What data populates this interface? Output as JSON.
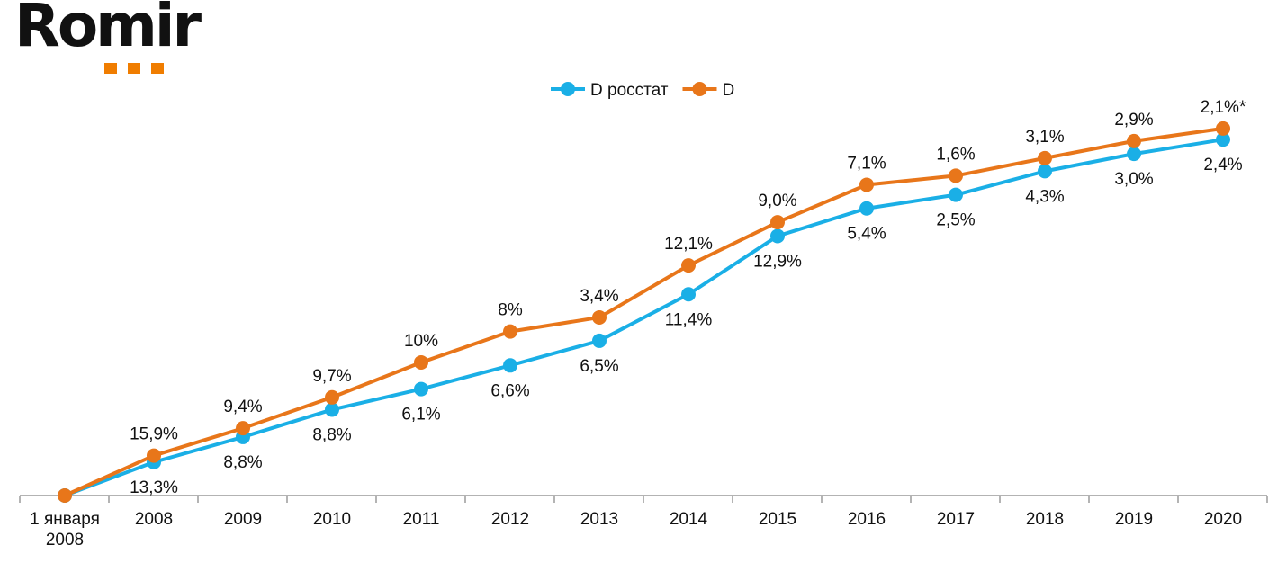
{
  "logo": {
    "text": "Romir",
    "dot_color": "#F07D00"
  },
  "chart_data": {
    "type": "line",
    "title": "",
    "xlabel": "",
    "ylabel": "",
    "ylim": [
      1.0,
      2.5
    ],
    "grid": false,
    "legend_position": "top-center",
    "categories": [
      "1 января 2008",
      "2008",
      "2009",
      "2010",
      "2011",
      "2012",
      "2013",
      "2014",
      "2015",
      "2016",
      "2017",
      "2018",
      "2019",
      "2020"
    ],
    "series": [
      {
        "name": "D росстат",
        "color": "#1AAFE6",
        "label_position": "below",
        "values": [
          1.0,
          1.133,
          1.233,
          1.342,
          1.424,
          1.518,
          1.616,
          1.801,
          2.033,
          2.143,
          2.197,
          2.291,
          2.36,
          2.417
        ],
        "labels": [
          "",
          "13,3%",
          "8,8%",
          "8,8%",
          "6,1%",
          "6,6%",
          "6,5%",
          "11,4%",
          "12,9%",
          "5,4%",
          "2,5%",
          "4,3%",
          "3,0%",
          "2,4%"
        ]
      },
      {
        "name": "D",
        "color": "#E8761A",
        "label_position": "above",
        "values": [
          1.0,
          1.159,
          1.268,
          1.391,
          1.53,
          1.653,
          1.709,
          1.916,
          2.088,
          2.237,
          2.273,
          2.343,
          2.411,
          2.461
        ],
        "labels": [
          "",
          "15,9%",
          "9,4%",
          "9,7%",
          "10%",
          "8%",
          "3,4%",
          "12,1%",
          "9,0%",
          "7,1%",
          "1,6%",
          "3,1%",
          "2,9%",
          "2,1%*"
        ]
      }
    ]
  }
}
